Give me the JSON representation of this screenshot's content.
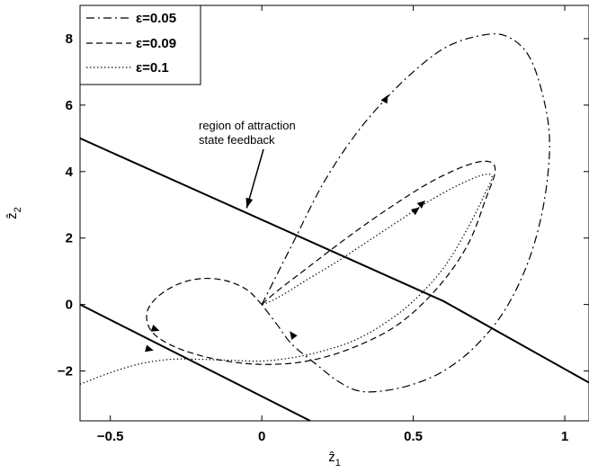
{
  "chart_data": {
    "type": "line",
    "title": "",
    "xlabel": "ẑ",
    "xlabel_sub": "1",
    "ylabel": "ẑ",
    "ylabel_sub": "2",
    "xlim": [
      -0.6,
      1.08
    ],
    "ylim": [
      -3.5,
      9.0
    ],
    "xticks": [
      -0.5,
      0,
      0.5,
      1
    ],
    "xtick_labels": [
      "−0.5",
      "0",
      "0.5",
      "1"
    ],
    "yticks": [
      -2,
      0,
      2,
      4,
      6,
      8
    ],
    "ytick_labels": [
      "−2",
      "0",
      "2",
      "4",
      "6",
      "8"
    ],
    "grid": false,
    "legend_position": "top-left",
    "series": [
      {
        "name": "ε=0.05",
        "style": "dashdot",
        "x": [
          0,
          0.05,
          0.1,
          0.2,
          0.3,
          0.4,
          0.5,
          0.6,
          0.7,
          0.8,
          0.88,
          0.93,
          0.95,
          0.93,
          0.88,
          0.8,
          0.7,
          0.6,
          0.5,
          0.4,
          0.32,
          0.25,
          0.18,
          0.1,
          0.05,
          0
        ],
        "y": [
          0,
          0.9,
          1.8,
          3.6,
          5.0,
          6.1,
          7.0,
          7.7,
          8.05,
          8.1,
          7.5,
          6.2,
          4.8,
          3.0,
          1.3,
          -0.2,
          -1.3,
          -2.0,
          -2.4,
          -2.6,
          -2.6,
          -2.3,
          -1.8,
          -1.2,
          -0.6,
          0
        ]
      },
      {
        "name": "ε=0.09",
        "style": "dashed",
        "x": [
          0,
          -0.05,
          -0.12,
          -0.2,
          -0.28,
          -0.35,
          -0.38,
          -0.36,
          -0.28,
          -0.15,
          0,
          0.15,
          0.3,
          0.45,
          0.58,
          0.68,
          0.74,
          0.77,
          0.75,
          0.68,
          0.56,
          0.42,
          0.28,
          0.15,
          0.05,
          0
        ],
        "y": [
          0,
          0.45,
          0.72,
          0.78,
          0.6,
          0.18,
          -0.3,
          -0.85,
          -1.3,
          -1.65,
          -1.8,
          -1.7,
          -1.3,
          -0.6,
          0.5,
          1.8,
          3.2,
          4.0,
          4.3,
          4.2,
          3.7,
          2.9,
          2.0,
          1.1,
          0.4,
          0
        ]
      },
      {
        "name": "ε=0.1",
        "style": "dotted",
        "x": [
          -0.6,
          -0.5,
          -0.4,
          -0.3,
          -0.2,
          -0.1,
          0,
          0.1,
          0.2,
          0.3,
          0.4,
          0.5,
          0.6,
          0.68,
          0.74,
          0.76,
          0.73,
          0.65,
          0.55,
          0.45,
          0.35,
          0.25,
          0.15,
          0.08,
          0.03,
          0
        ],
        "y": [
          -2.4,
          -2.05,
          -1.78,
          -1.65,
          -1.65,
          -1.68,
          -1.7,
          -1.6,
          -1.4,
          -1.1,
          -0.6,
          0.1,
          1.1,
          2.3,
          3.4,
          3.85,
          3.9,
          3.6,
          3.1,
          2.5,
          1.9,
          1.3,
          0.75,
          0.35,
          0.1,
          0
        ]
      }
    ],
    "boundary_lines": [
      {
        "name": "region of attraction state feedback (upper)",
        "x": [
          -0.6,
          0.6,
          1.08
        ],
        "y": [
          5.0,
          0.1,
          -2.35
        ]
      },
      {
        "name": "region of attraction state feedback (lower)",
        "x": [
          -0.6,
          0.16
        ],
        "y": [
          0.0,
          -3.5
        ]
      }
    ],
    "annotation": {
      "lines": [
        "region of attraction",
        "state feedback"
      ],
      "arrow_target": [
        -0.05,
        2.9
      ]
    },
    "arrowheads": [
      {
        "x": 0.41,
        "y": 6.2,
        "dx": 0.05,
        "dy": 0.8
      },
      {
        "x": 0.53,
        "y": 3.05,
        "dx": 0.05,
        "dy": 0.4
      },
      {
        "x": 0.51,
        "y": 2.85,
        "dx": 0.05,
        "dy": 0.35
      },
      {
        "x": -0.35,
        "y": -0.75,
        "dx": 0.06,
        "dy": -0.2
      },
      {
        "x": -0.37,
        "y": -1.35,
        "dx": 0.06,
        "dy": -0.15
      },
      {
        "x": 0.1,
        "y": -0.9,
        "dx": -0.04,
        "dy": 0.5
      }
    ]
  }
}
